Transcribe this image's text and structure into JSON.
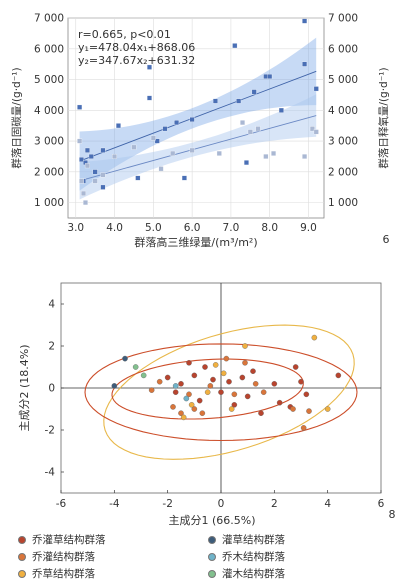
{
  "chart_data": [
    {
      "type": "scatter",
      "panel_label": "6",
      "xlabel": "群落高三维绿量/(m³/m²)",
      "ylabel_left": "群落日固碳量/(g·d⁻¹)",
      "ylabel_right": "群落日释氧量/(g·d⁻¹)",
      "annotation": [
        "r=0.665, p<0.01",
        "y₁=478.04x₁+868.06",
        "y₂=347.67x₂+631.32"
      ],
      "xlim": [
        2.8,
        9.4
      ],
      "ylim": [
        500,
        7000
      ],
      "x_ticks": [
        "3.0",
        "4.0",
        "5.0",
        "6.0",
        "7.0",
        "8.0",
        "9.0"
      ],
      "y_ticks": [
        "1 000",
        "2 000",
        "3 000",
        "4 000",
        "5 000",
        "6 000",
        "7 000"
      ],
      "grid": true,
      "series": [
        {
          "color": "#4a6fb5",
          "fit": {
            "slope": 478.04,
            "intercept": 868.06
          },
          "points": [
            [
              3.1,
              4100
            ],
            [
              3.15,
              2400
            ],
            [
              3.2,
              1700
            ],
            [
              3.25,
              2300
            ],
            [
              3.3,
              2700
            ],
            [
              3.4,
              2500
            ],
            [
              3.5,
              2000
            ],
            [
              3.7,
              2700
            ],
            [
              3.7,
              1500
            ],
            [
              4.1,
              3500
            ],
            [
              4.6,
              1800
            ],
            [
              4.9,
              5400
            ],
            [
              4.9,
              4400
            ],
            [
              5.1,
              3000
            ],
            [
              5.3,
              3400
            ],
            [
              5.6,
              3600
            ],
            [
              5.8,
              1800
            ],
            [
              6.0,
              3700
            ],
            [
              6.6,
              4300
            ],
            [
              7.1,
              6100
            ],
            [
              7.2,
              4300
            ],
            [
              7.4,
              2300
            ],
            [
              7.6,
              4600
            ],
            [
              7.9,
              5100
            ],
            [
              8.0,
              5100
            ],
            [
              8.3,
              4000
            ],
            [
              8.9,
              6900
            ],
            [
              8.9,
              5500
            ],
            [
              9.2,
              4700
            ]
          ]
        },
        {
          "color": "#aab8d3",
          "fit": {
            "slope": 347.67,
            "intercept": 631.32
          },
          "points": [
            [
              3.1,
              3000
            ],
            [
              3.15,
              1700
            ],
            [
              3.2,
              1300
            ],
            [
              3.25,
              1000
            ],
            [
              3.3,
              2200
            ],
            [
              3.5,
              1700
            ],
            [
              3.7,
              1900
            ],
            [
              4.0,
              2500
            ],
            [
              4.5,
              2800
            ],
            [
              5.0,
              3100
            ],
            [
              5.2,
              2100
            ],
            [
              5.5,
              2600
            ],
            [
              6.0,
              2700
            ],
            [
              6.7,
              2600
            ],
            [
              7.3,
              3600
            ],
            [
              7.5,
              3300
            ],
            [
              7.7,
              3400
            ],
            [
              7.9,
              2500
            ],
            [
              8.1,
              2600
            ],
            [
              8.9,
              2500
            ],
            [
              9.1,
              3400
            ],
            [
              9.2,
              3300
            ]
          ]
        }
      ]
    },
    {
      "type": "scatter",
      "panel_label": "8",
      "xlabel": "主成分1 (66.5%)",
      "ylabel": "主成分2 (18.4%)",
      "xlim": [
        -6,
        6
      ],
      "ylim": [
        -5,
        5
      ],
      "x_ticks": [
        "-6",
        "-4",
        "-2",
        "0",
        "2",
        "4",
        "6"
      ],
      "y_ticks": [
        "-4",
        "-2",
        "0",
        "2",
        "4"
      ],
      "grid": false,
      "ellipses": [
        {
          "color": "#e8b84a",
          "cx": 0.3,
          "cy": -0.2,
          "rx": 5.0,
          "ry": 2.7,
          "angle_deg": 24
        },
        {
          "color": "#cc4e2a",
          "cx": 0.0,
          "cy": -0.2,
          "rx": 5.1,
          "ry": 2.3,
          "angle_deg": 0
        },
        {
          "color": "#cc4e2a",
          "cx": -0.5,
          "cy": -0.05,
          "rx": 3.6,
          "ry": 1.4,
          "angle_deg": 5
        }
      ],
      "groups": [
        {
          "name": "乔灌草结构群落",
          "color": "#b8442e",
          "points": [
            [
              -2.0,
              0.5
            ],
            [
              -1.7,
              -0.2
            ],
            [
              -1.5,
              0.2
            ],
            [
              -1.2,
              1.2
            ],
            [
              -1.0,
              0.6
            ],
            [
              -0.8,
              -0.6
            ],
            [
              -0.6,
              1.0
            ],
            [
              -0.3,
              0.4
            ],
            [
              0.0,
              -0.2
            ],
            [
              0.3,
              0.3
            ],
            [
              0.5,
              -0.8
            ],
            [
              0.8,
              0.5
            ],
            [
              1.0,
              -0.4
            ],
            [
              1.2,
              0.8
            ],
            [
              1.5,
              -1.2
            ],
            [
              2.0,
              0.2
            ],
            [
              2.2,
              -0.7
            ],
            [
              2.6,
              -0.9
            ],
            [
              2.8,
              1.0
            ],
            [
              3.0,
              0.3
            ],
            [
              3.2,
              -0.3
            ],
            [
              4.4,
              0.6
            ]
          ]
        },
        {
          "name": "乔灌结构群落",
          "color": "#d9753a",
          "points": [
            [
              -2.6,
              -0.1
            ],
            [
              -2.3,
              0.3
            ],
            [
              -1.8,
              -0.9
            ],
            [
              -1.5,
              -1.2
            ],
            [
              -1.2,
              -0.3
            ],
            [
              -1.0,
              -1.0
            ],
            [
              -0.7,
              -1.2
            ],
            [
              -0.4,
              0.1
            ],
            [
              0.2,
              1.4
            ],
            [
              0.5,
              -0.3
            ],
            [
              0.9,
              1.2
            ],
            [
              1.3,
              0.2
            ],
            [
              1.6,
              -0.2
            ],
            [
              2.7,
              -1.0
            ],
            [
              3.3,
              -1.1
            ],
            [
              3.1,
              -1.9
            ]
          ]
        },
        {
          "name": "乔草结构群落",
          "color": "#f0b040",
          "points": [
            [
              -1.4,
              -1.4
            ],
            [
              -1.1,
              -0.8
            ],
            [
              -0.5,
              -0.2
            ],
            [
              0.1,
              0.7
            ],
            [
              0.4,
              -1.0
            ],
            [
              0.9,
              2.0
            ],
            [
              3.5,
              2.4
            ],
            [
              4.0,
              -1.0
            ],
            [
              -0.2,
              1.1
            ]
          ]
        },
        {
          "name": "灌草结构群落",
          "color": "#3d5c7a",
          "points": [
            [
              -4.0,
              0.1
            ],
            [
              -3.6,
              1.4
            ]
          ]
        },
        {
          "name": "乔木结构群落",
          "color": "#6fb3c9",
          "points": [
            [
              -1.7,
              0.1
            ],
            [
              -1.3,
              -0.5
            ]
          ]
        },
        {
          "name": "灌木结构群落",
          "color": "#82c08e",
          "points": [
            [
              -3.2,
              1.0
            ],
            [
              -2.9,
              0.6
            ]
          ]
        }
      ]
    }
  ]
}
